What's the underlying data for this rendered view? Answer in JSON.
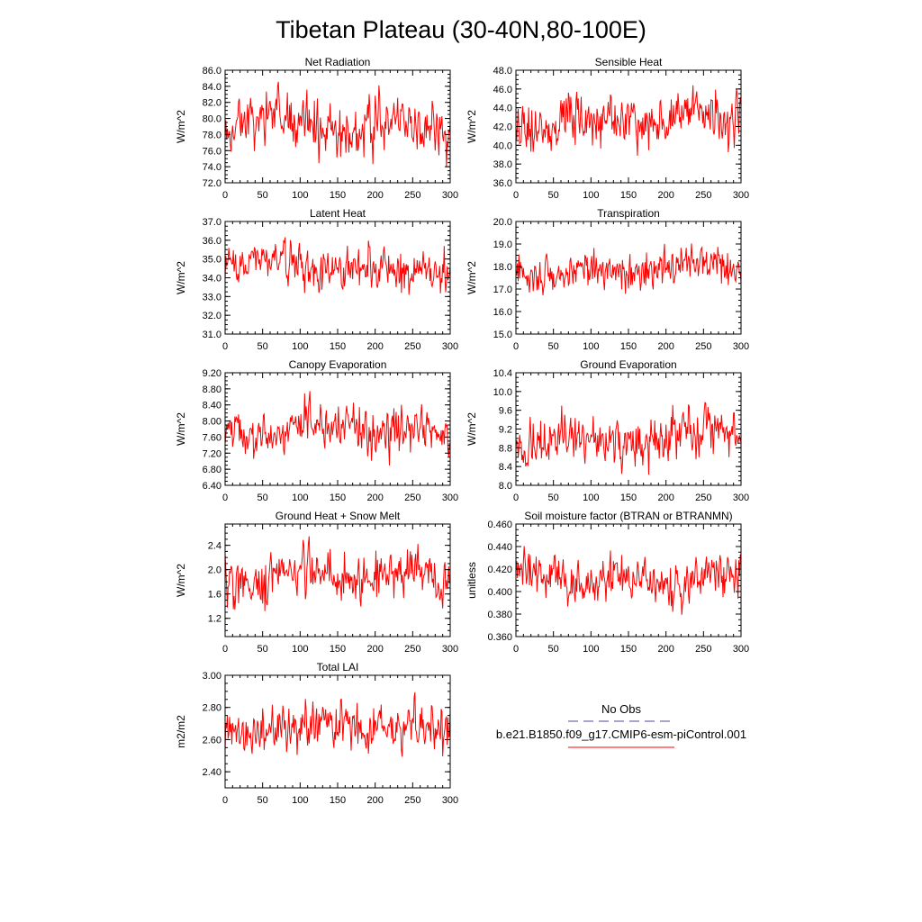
{
  "figure": {
    "title": "Tibetan Plateau (30-40N,80-100E)"
  },
  "legend": {
    "obs_label": "No Obs",
    "obs_color": "#4a4a9a",
    "model_label": "b.e21.B1850.f09_g17.CMIP6-esm-piControl.001",
    "model_color": "#ff0000"
  },
  "chart_data": [
    {
      "type": "line",
      "title": "Net Radiation",
      "ylabel": "W/m^2",
      "xlim": [
        0,
        300
      ],
      "ylim": [
        72,
        86
      ],
      "xticks": [
        0,
        50,
        100,
        150,
        200,
        250,
        300
      ],
      "yticks": [
        72,
        74,
        76,
        78,
        80,
        82,
        84,
        86
      ],
      "ytick_labels": [
        "72.0",
        "74.0",
        "76.0",
        "78.0",
        "80.0",
        "82.0",
        "84.0",
        "86.0"
      ],
      "series": [
        {
          "seed": 11,
          "mean": 79.3,
          "amp": 2.3,
          "min": 73.5,
          "max": 85.0
        }
      ]
    },
    {
      "type": "line",
      "title": "Sensible Heat",
      "ylabel": "W/m^2",
      "xlim": [
        0,
        300
      ],
      "ylim": [
        36,
        48
      ],
      "xticks": [
        0,
        50,
        100,
        150,
        200,
        250,
        300
      ],
      "yticks": [
        36,
        38,
        40,
        42,
        44,
        46,
        48
      ],
      "ytick_labels": [
        "36.0",
        "38.0",
        "40.0",
        "42.0",
        "44.0",
        "46.0",
        "48.0"
      ],
      "series": [
        {
          "seed": 23,
          "mean": 42.6,
          "amp": 1.9,
          "min": 37.3,
          "max": 47.9
        }
      ]
    },
    {
      "type": "line",
      "title": "Latent Heat",
      "ylabel": "W/m^2",
      "xlim": [
        0,
        300
      ],
      "ylim": [
        31,
        37
      ],
      "xticks": [
        0,
        50,
        100,
        150,
        200,
        250,
        300
      ],
      "yticks": [
        31,
        32,
        33,
        34,
        35,
        36,
        37
      ],
      "ytick_labels": [
        "31.0",
        "32.0",
        "33.0",
        "34.0",
        "35.0",
        "36.0",
        "37.0"
      ],
      "series": [
        {
          "seed": 37,
          "mean": 34.6,
          "amp": 0.75,
          "min": 31.9,
          "max": 36.9
        }
      ]
    },
    {
      "type": "line",
      "title": "Transpiration",
      "ylabel": "W/m^2",
      "xlim": [
        0,
        300
      ],
      "ylim": [
        15,
        20
      ],
      "xticks": [
        0,
        50,
        100,
        150,
        200,
        250,
        300
      ],
      "yticks": [
        15,
        16,
        17,
        18,
        19,
        20
      ],
      "ytick_labels": [
        "15.0",
        "16.0",
        "17.0",
        "18.0",
        "19.0",
        "20.0"
      ],
      "series": [
        {
          "seed": 41,
          "mean": 17.9,
          "amp": 0.55,
          "min": 15.9,
          "max": 19.5
        }
      ]
    },
    {
      "type": "line",
      "title": "Canopy Evaporation",
      "ylabel": "W/m^2",
      "xlim": [
        0,
        300
      ],
      "ylim": [
        6.4,
        9.2
      ],
      "xticks": [
        0,
        50,
        100,
        150,
        200,
        250,
        300
      ],
      "yticks": [
        6.4,
        6.8,
        7.2,
        7.6,
        8.0,
        8.4,
        8.8,
        9.2
      ],
      "ytick_labels": [
        "6.40",
        "6.80",
        "7.20",
        "7.60",
        "8.00",
        "8.40",
        "8.80",
        "9.20"
      ],
      "series": [
        {
          "seed": 53,
          "mean": 7.75,
          "amp": 0.4,
          "min": 6.7,
          "max": 9.05
        }
      ]
    },
    {
      "type": "line",
      "title": "Ground Evaporation",
      "ylabel": "W/m^2",
      "xlim": [
        0,
        300
      ],
      "ylim": [
        8.0,
        10.4
      ],
      "xticks": [
        0,
        50,
        100,
        150,
        200,
        250,
        300
      ],
      "yticks": [
        8.0,
        8.4,
        8.8,
        9.2,
        9.6,
        10.0,
        10.4
      ],
      "ytick_labels": [
        "8.0",
        "8.4",
        "8.8",
        "9.2",
        "9.6",
        "10.0",
        "10.4"
      ],
      "series": [
        {
          "seed": 67,
          "mean": 9.0,
          "amp": 0.36,
          "min": 8.1,
          "max": 10.2
        }
      ]
    },
    {
      "type": "line",
      "title": "Ground Heat + Snow Melt",
      "ylabel": "W/m^2",
      "xlim": [
        0,
        300
      ],
      "ylim": [
        0.9,
        2.75
      ],
      "xticks": [
        0,
        50,
        100,
        150,
        200,
        250,
        300
      ],
      "yticks": [
        1.2,
        1.6,
        2.0,
        2.4
      ],
      "ytick_labels": [
        "1.2",
        "1.6",
        "2.0",
        "2.4"
      ],
      "series": [
        {
          "seed": 79,
          "mean": 1.85,
          "amp": 0.28,
          "min": 1.05,
          "max": 2.6
        }
      ]
    },
    {
      "type": "line",
      "title": "Soil moisture factor (BTRAN or BTRANMN)",
      "ylabel": "unitless",
      "xlim": [
        0,
        300
      ],
      "ylim": [
        0.36,
        0.46
      ],
      "xticks": [
        0,
        50,
        100,
        150,
        200,
        250,
        300
      ],
      "yticks": [
        0.36,
        0.38,
        0.4,
        0.42,
        0.44,
        0.46
      ],
      "ytick_labels": [
        "0.360",
        "0.380",
        "0.400",
        "0.420",
        "0.440",
        "0.460"
      ],
      "series": [
        {
          "seed": 83,
          "mean": 0.413,
          "amp": 0.013,
          "min": 0.364,
          "max": 0.451
        }
      ]
    },
    {
      "type": "line",
      "title": "Total LAI",
      "ylabel": "m2/m2",
      "xlim": [
        0,
        300
      ],
      "ylim": [
        2.3,
        3.0
      ],
      "xticks": [
        0,
        50,
        100,
        150,
        200,
        250,
        300
      ],
      "yticks": [
        2.4,
        2.6,
        2.8,
        3.0
      ],
      "ytick_labels": [
        "2.40",
        "2.60",
        "2.80",
        "3.00"
      ],
      "series": [
        {
          "seed": 97,
          "mean": 2.66,
          "amp": 0.1,
          "min": 2.34,
          "max": 2.95
        }
      ]
    }
  ]
}
